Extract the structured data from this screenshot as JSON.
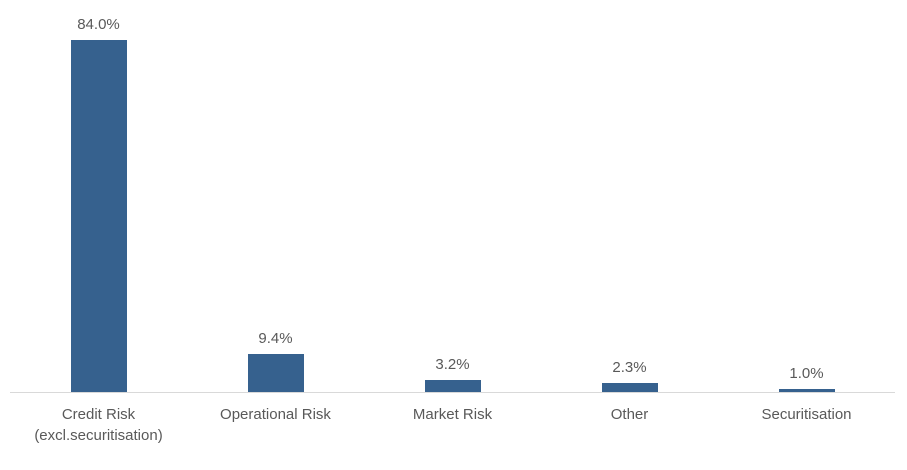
{
  "chart_data": {
    "type": "bar",
    "title": "",
    "xlabel": "",
    "ylabel": "",
    "categories": [
      "Credit Risk (excl.securitisation)",
      "Operational Risk",
      "Market Risk",
      "Other",
      "Securitisation"
    ],
    "values": [
      84.0,
      9.4,
      3.2,
      2.3,
      1.0
    ],
    "value_labels": [
      "84.0%",
      "9.4%",
      "3.2%",
      "2.3%",
      "1.0%"
    ],
    "ylim": [
      0,
      90
    ],
    "grid": false,
    "legend": false,
    "y_axis_visible": false,
    "bar_color": "#36618E",
    "value_label_color": "#595959",
    "category_label_color": "#595959",
    "axis_line_color": "#D9D9D9",
    "background_color": "#FFFFFF"
  }
}
